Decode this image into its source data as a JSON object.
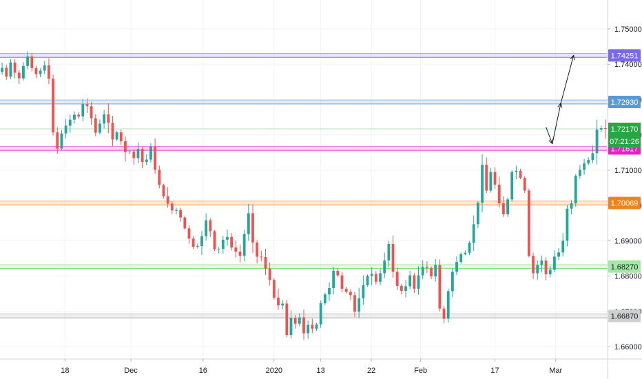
{
  "chart_data": {
    "type": "candlestick",
    "y_axis": {
      "ticks": [
        "1.75000",
        "1.74000",
        "1.73000",
        "1.72000",
        "1.71000",
        "1.70000",
        "1.69000",
        "1.68000",
        "1.67000",
        "1.66000"
      ],
      "tick_values": [
        1.75,
        1.74,
        1.73,
        1.72,
        1.71,
        1.7,
        1.69,
        1.68,
        1.67,
        1.66
      ],
      "range": [
        1.6565,
        1.7582
      ]
    },
    "x_axis": {
      "ticks": [
        "18",
        "Dec",
        "16",
        "2020",
        "13",
        "22",
        "Feb",
        "17",
        "Mar"
      ],
      "range": [
        0,
        143
      ]
    },
    "grid": true,
    "price_tags": {
      "current_price": "1.72170",
      "countdown": "07:21:26",
      "levels": [
        "1.74251",
        "1.72930",
        "1.71617",
        "1.70069",
        "1.68270",
        "1.66870"
      ]
    },
    "levels": [
      {
        "label": "1.74251",
        "value": 1.74251,
        "color": "#7b68ee"
      },
      {
        "label": "1.72930",
        "value": 1.7293,
        "color": "#5b9bd5"
      },
      {
        "label": "1.71617",
        "value": 1.71617,
        "color": "#e91ec5"
      },
      {
        "label": "1.70069",
        "value": 1.70069,
        "color": "#f0841c"
      },
      {
        "label": "1.68270",
        "value": 1.6827,
        "color": "#66d566"
      },
      {
        "label": "1.66870",
        "value": 1.6687,
        "color": "#9e9e9e"
      }
    ],
    "colors": {
      "up": "#26a69a",
      "down": "#ef5350",
      "current": "#27a644"
    },
    "projection_path": [
      {
        "x": 128.5,
        "y": 1.7222
      },
      {
        "x": 130,
        "y": 1.7175
      },
      {
        "x": 132,
        "y": 1.729
      },
      {
        "x": 135,
        "y": 1.7425
      }
    ],
    "close": [
      1.739,
      1.7365,
      1.7405,
      1.7376,
      1.736,
      1.7395,
      1.7422,
      1.7389,
      1.7372,
      1.7382,
      1.7397,
      1.7359,
      1.7207,
      1.7161,
      1.7204,
      1.7226,
      1.7243,
      1.7257,
      1.7252,
      1.7287,
      1.7281,
      1.7247,
      1.7206,
      1.7232,
      1.7258,
      1.7234,
      1.7187,
      1.7207,
      1.7182,
      1.7151,
      1.7153,
      1.7134,
      1.716,
      1.7123,
      1.713,
      1.7167,
      1.7101,
      1.7058,
      1.7026,
      1.7005,
      1.6986,
      1.6987,
      1.6966,
      1.6935,
      1.6906,
      1.6883,
      1.6885,
      1.6913,
      1.6958,
      1.6927,
      1.6876,
      1.6877,
      1.6903,
      1.6911,
      1.6881,
      1.6869,
      1.6857,
      1.6919,
      1.6978,
      1.6895,
      1.6855,
      1.6854,
      1.6821,
      1.6789,
      1.6739,
      1.6717,
      1.6722,
      1.6633,
      1.6682,
      1.6665,
      1.6683,
      1.6638,
      1.6662,
      1.6651,
      1.6663,
      1.6723,
      1.6748,
      1.6766,
      1.6815,
      1.6802,
      1.6764,
      1.6755,
      1.6746,
      1.6699,
      1.6737,
      1.6774,
      1.68,
      1.6806,
      1.6784,
      1.6808,
      1.6844,
      1.6891,
      1.6812,
      1.6772,
      1.6758,
      1.6771,
      1.6802,
      1.6764,
      1.6802,
      1.6826,
      1.6823,
      1.6799,
      1.6831,
      1.6708,
      1.6679,
      1.6757,
      1.6812,
      1.684,
      1.6862,
      1.6866,
      1.6894,
      1.6947,
      1.7008,
      1.7115,
      1.7042,
      1.7095,
      1.7059,
      1.7006,
      1.6975,
      1.7017,
      1.7095,
      1.7098,
      1.7078,
      1.7042,
      1.6857,
      1.6808,
      1.6831,
      1.6844,
      1.6805,
      1.6818,
      1.6855,
      1.6867,
      1.69,
      1.6991,
      1.7006,
      1.7084,
      1.7101,
      1.7119,
      1.7129,
      1.7148,
      1.7215,
      1.7219,
      1.7217
    ]
  }
}
